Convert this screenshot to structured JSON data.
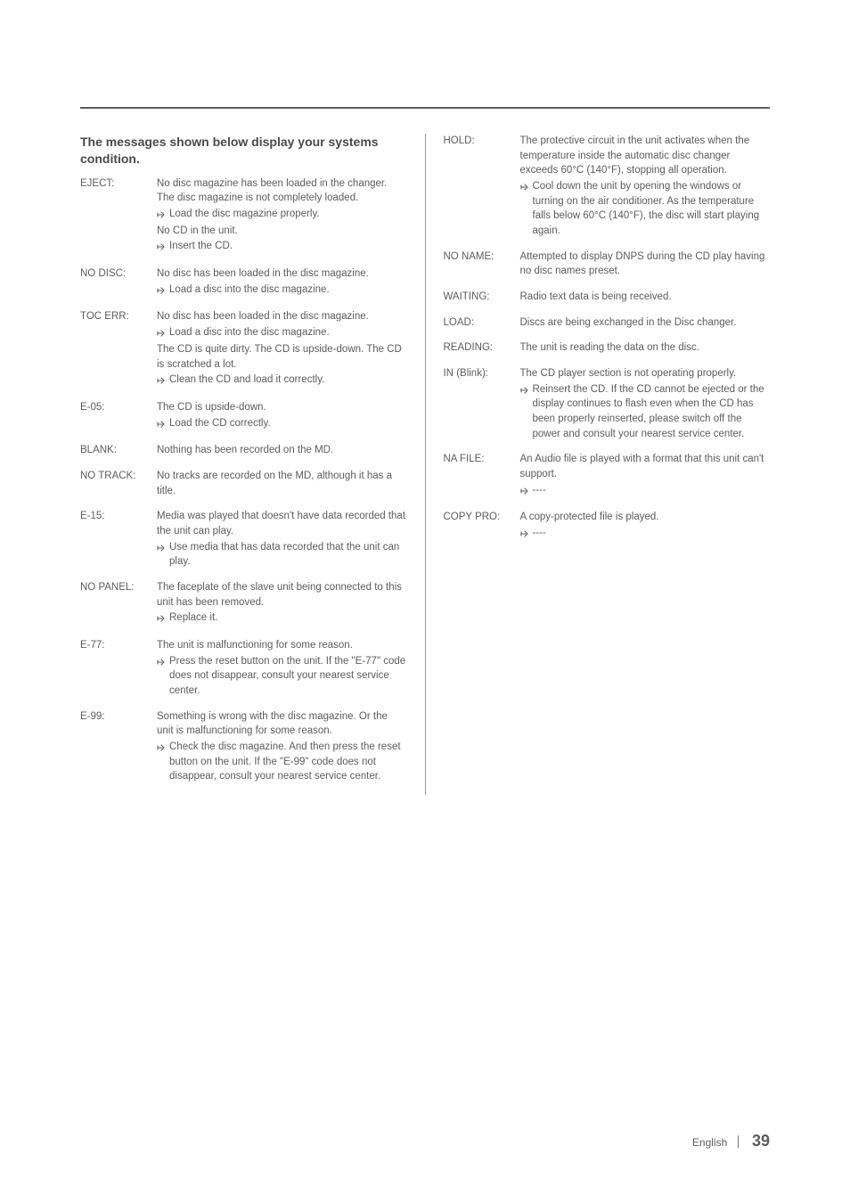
{
  "heading": "The messages shown below display your systems condition.",
  "left": [
    {
      "label": "EJECT:",
      "text": "No disc magazine has been loaded in the changer. The disc magazine is not completely loaded.",
      "actions": [
        "Load the disc magazine properly."
      ],
      "text2": "No CD in the unit.",
      "actions2": [
        "Insert the CD."
      ]
    },
    {
      "label": "NO DISC:",
      "text": "No disc has been loaded in the disc magazine.",
      "actions": [
        "Load a disc into the disc magazine."
      ]
    },
    {
      "label": "TOC ERR:",
      "text": "No disc has been loaded in the disc magazine.",
      "actions": [
        "Load a disc into the disc magazine."
      ],
      "text2": "The CD is quite dirty. The CD is upside-down. The CD is scratched a lot.",
      "actions2": [
        "Clean the CD and load it correctly."
      ]
    },
    {
      "label": "E-05:",
      "text": "The CD is upside-down.",
      "actions": [
        "Load the CD correctly."
      ]
    },
    {
      "label": "BLANK:",
      "text": "Nothing has been recorded on the MD."
    },
    {
      "label": "NO TRACK:",
      "text": "No tracks are recorded on the MD, although it has a title."
    },
    {
      "label": "E-15:",
      "text": "Media was played that doesn't have data recorded that the unit can play.",
      "actions": [
        "Use media that has data recorded that the unit can play."
      ]
    },
    {
      "label": "NO PANEL:",
      "text": "The faceplate of the slave unit being connected to this unit has been removed.",
      "actions": [
        "Replace it."
      ]
    },
    {
      "label": "E-77:",
      "text": "The unit is malfunctioning for some reason.",
      "actions": [
        "Press the reset button on the unit. If the \"E-77\" code does not disappear, consult your nearest service center."
      ]
    },
    {
      "label": "E-99:",
      "text": "Something is wrong with the disc magazine. Or the unit is malfunctioning for some reason.",
      "actions": [
        "Check the disc magazine. And then press the reset button on the unit. If the \"E-99\" code does not disappear, consult your nearest service center."
      ]
    }
  ],
  "right": [
    {
      "label": "HOLD:",
      "text": "The protective circuit in the unit activates when the temperature inside the automatic disc changer exceeds 60°C (140°F), stopping all operation.",
      "actions": [
        "Cool down the unit by opening the windows or turning on the air conditioner. As the temperature falls below 60°C (140°F), the disc will start playing again."
      ]
    },
    {
      "label": "NO NAME:",
      "text": "Attempted to display DNPS during the CD play having no disc names preset."
    },
    {
      "label": "WAITING:",
      "text": "Radio text data is being received."
    },
    {
      "label": "LOAD:",
      "text": "Discs are being exchanged in the Disc changer."
    },
    {
      "label": "READING:",
      "text": "The unit is reading the data on the disc."
    },
    {
      "label": "IN (Blink):",
      "text": "The CD player section is not operating properly.",
      "actions": [
        "Reinsert the CD. If the CD cannot be ejected or the display continues to flash even when the CD has been properly reinserted, please switch off the power and consult your nearest service center."
      ]
    },
    {
      "label": "NA FILE:",
      "text": "An Audio file is played with a format that this unit can't support.",
      "actions": [
        "----"
      ]
    },
    {
      "label": "COPY PRO:",
      "text": "A copy-protected file is played.",
      "actions": [
        "----"
      ]
    }
  ],
  "footer": {
    "lang": "English",
    "page": "39"
  }
}
